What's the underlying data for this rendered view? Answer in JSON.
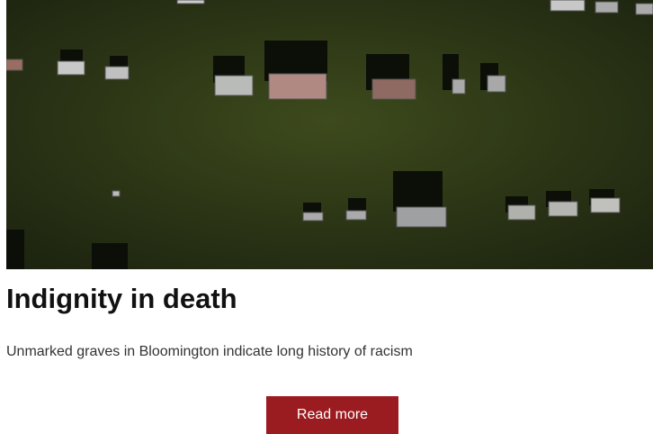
{
  "article": {
    "title": "Indignity in death",
    "summary": "Unmarked graves in Bloomington indicate long history of racism",
    "button": "Read more"
  }
}
